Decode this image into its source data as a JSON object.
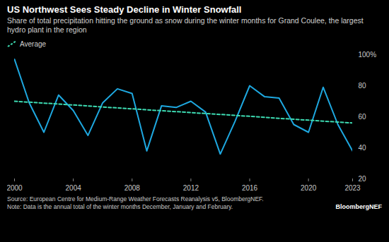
{
  "chart_data": {
    "type": "line",
    "title": "US Northwest Sees Steady Decline in Winter Snowfall",
    "subtitle": "Share of total precipitation hitting the ground as snow during the winter months for Grand Coulee, the largest hydro plant in the region",
    "source": "Source: European Centre for Medium-Range Weather Forecasts Reanalysis v5, BloombergNEF.",
    "note": "Note: Data is the annual total of the winter months December, January and February.",
    "brand": "BloombergNEF",
    "x": [
      2000,
      2001,
      2002,
      2003,
      2004,
      2005,
      2006,
      2007,
      2008,
      2009,
      2010,
      2011,
      2012,
      2013,
      2014,
      2015,
      2016,
      2017,
      2018,
      2019,
      2020,
      2021,
      2022,
      2023
    ],
    "series": [
      {
        "color": "#1ea8e0",
        "line_style": "solid",
        "values": [
          97,
          69,
          50,
          74,
          64,
          48,
          69,
          78,
          75,
          38,
          67,
          66,
          70,
          63,
          36,
          57,
          80,
          73,
          72,
          55,
          50,
          79,
          55,
          38
        ]
      },
      {
        "name": "Average",
        "color": "#3ddbb2",
        "line_style": "dashed",
        "values": [
          70,
          69.4,
          68.8,
          68.2,
          67.6,
          67.0,
          66.3,
          65.7,
          65.1,
          64.5,
          63.9,
          63.3,
          62.7,
          62.1,
          61.5,
          60.9,
          60.3,
          59.7,
          59.0,
          58.4,
          57.8,
          57.2,
          56.6,
          56.0
        ]
      }
    ],
    "xlim": [
      2000,
      2023
    ],
    "xticks": [
      2000,
      2004,
      2008,
      2012,
      2016,
      2020,
      2023
    ],
    "ylim": [
      20,
      100
    ],
    "yticks": [
      20,
      40,
      60,
      80,
      {
        "value": 100,
        "label": "100%"
      }
    ],
    "grid": false,
    "legend": "top-left"
  }
}
